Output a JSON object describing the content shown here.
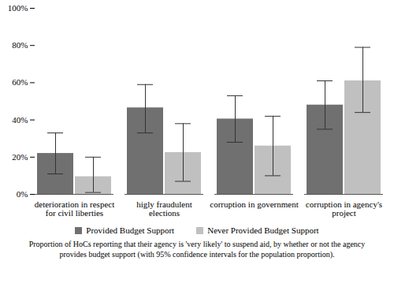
{
  "chart_data": {
    "type": "bar",
    "caption": "Proportion of HoCs reporting that their agency is 'very likely' to suspend aid, by whether or not the agency provides budget support (with 95% confidence intervals for the population proportion).",
    "categories": [
      "deterioration in respect for civil liberties",
      "higly fraudulent elections",
      "corruption in government",
      "corruption in agency's project"
    ],
    "series": [
      {
        "name": "Provided Budget Support",
        "color": "#707070",
        "values": [
          22,
          46.5,
          40.5,
          48
        ],
        "ci_lower": [
          11,
          33,
          28,
          35
        ],
        "ci_upper": [
          33,
          59,
          53,
          61
        ]
      },
      {
        "name": "Never Provided Budget Support",
        "color": "#c0c0c0",
        "values": [
          9.5,
          22.5,
          26,
          61
        ],
        "ci_lower": [
          1,
          7,
          10,
          44
        ],
        "ci_upper": [
          20,
          38,
          42,
          79
        ]
      }
    ],
    "ylim": [
      0,
      100
    ],
    "yticks": [
      {
        "value": 0,
        "label": "0%"
      },
      {
        "value": 20,
        "label": "20%"
      },
      {
        "value": 40,
        "label": "40%"
      },
      {
        "value": 60,
        "label": "60%"
      },
      {
        "value": 80,
        "label": "80%"
      },
      {
        "value": 100,
        "label": "100%"
      }
    ],
    "grid": false,
    "legend": "bottom"
  }
}
